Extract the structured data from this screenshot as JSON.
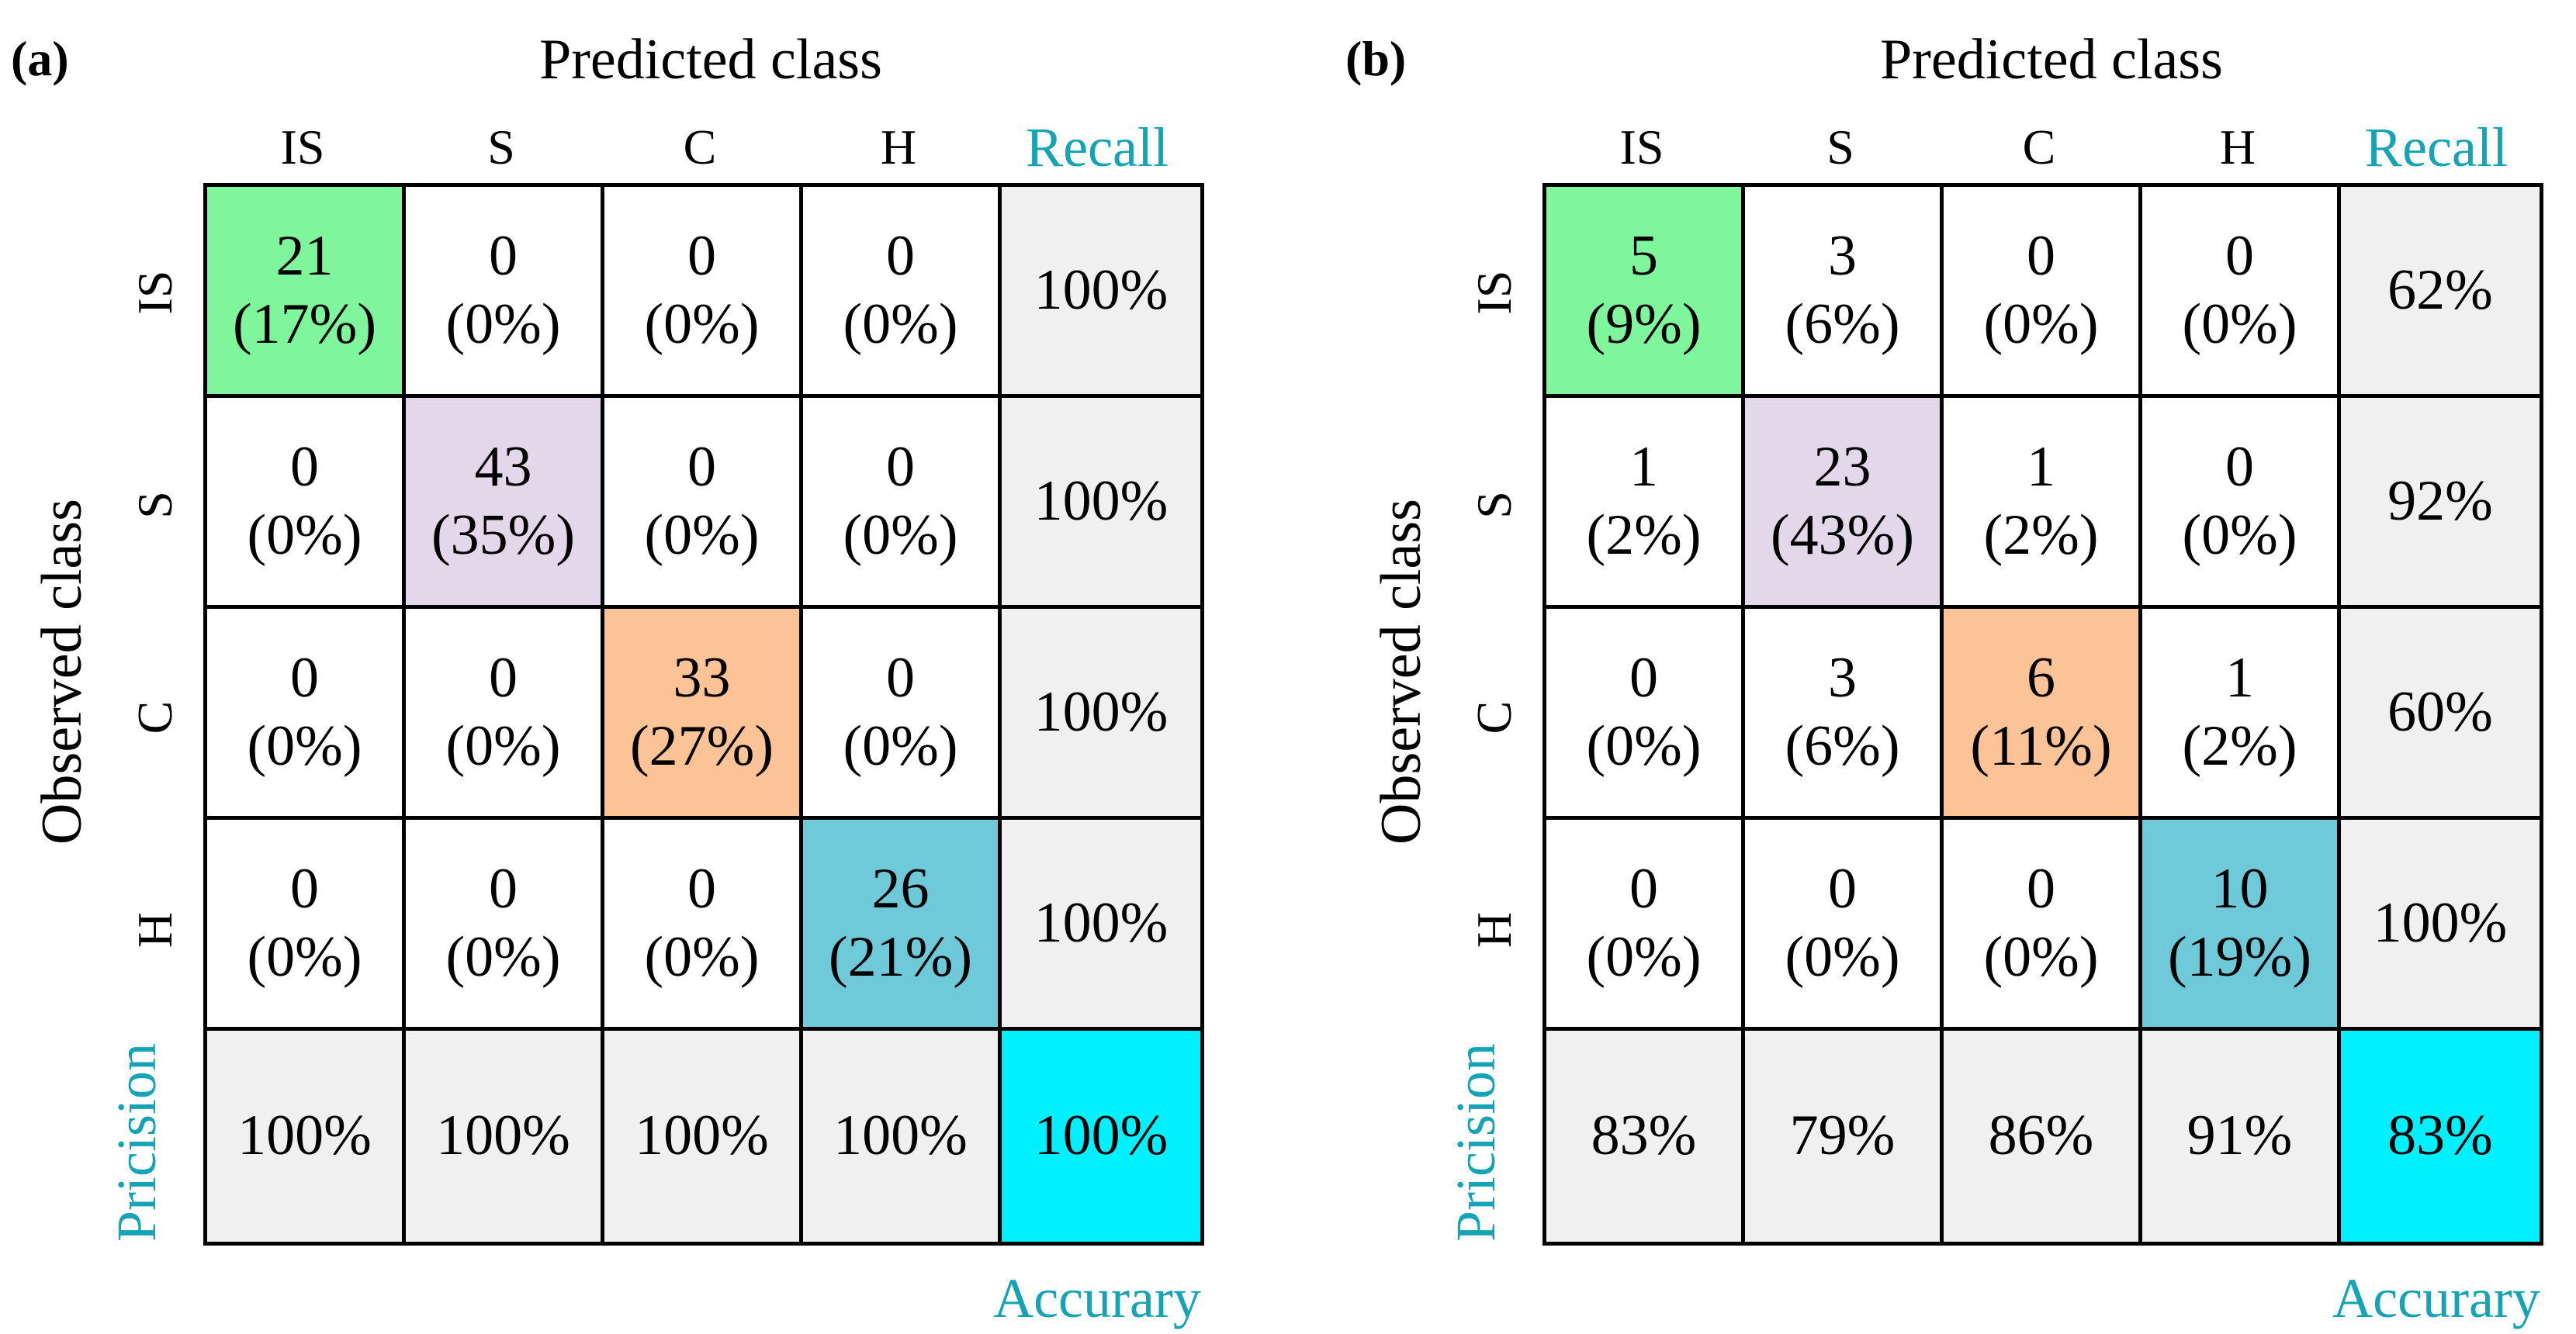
{
  "chart_data": [
    {
      "type": "table",
      "panel_label": "(a)",
      "title": "Predicted class",
      "xlabel": "Predicted class",
      "ylabel": "Observed class",
      "columns": [
        "IS",
        "S",
        "C",
        "H"
      ],
      "rows": [
        "IS",
        "S",
        "C",
        "H"
      ],
      "recall_label": "Recall",
      "precision_label": "Pricision",
      "accuracy_label": "Accurary",
      "counts": [
        [
          21,
          0,
          0,
          0
        ],
        [
          0,
          43,
          0,
          0
        ],
        [
          0,
          0,
          33,
          0
        ],
        [
          0,
          0,
          0,
          26
        ]
      ],
      "percents": [
        [
          "(17%)",
          "(0%)",
          "(0%)",
          "(0%)"
        ],
        [
          "(0%)",
          "(35%)",
          "(0%)",
          "(0%)"
        ],
        [
          "(0%)",
          "(0%)",
          "(27%)",
          "(0%)"
        ],
        [
          "(0%)",
          "(0%)",
          "(0%)",
          "(21%)"
        ]
      ],
      "recall": [
        "100%",
        "100%",
        "100%",
        "100%"
      ],
      "precision": [
        "100%",
        "100%",
        "100%",
        "100%"
      ],
      "accuracy": "100%"
    },
    {
      "type": "table",
      "panel_label": "(b)",
      "title": "Predicted class",
      "xlabel": "Predicted class",
      "ylabel": "Observed class",
      "columns": [
        "IS",
        "S",
        "C",
        "H"
      ],
      "rows": [
        "IS",
        "S",
        "C",
        "H"
      ],
      "recall_label": "Recall",
      "precision_label": "Pricision",
      "accuracy_label": "Accurary",
      "counts": [
        [
          5,
          3,
          0,
          0
        ],
        [
          1,
          23,
          1,
          0
        ],
        [
          0,
          3,
          6,
          1
        ],
        [
          0,
          0,
          0,
          10
        ]
      ],
      "percents": [
        [
          "(9%)",
          "(6%)",
          "(0%)",
          "(0%)"
        ],
        [
          "(2%)",
          "(43%)",
          "(2%)",
          "(0%)"
        ],
        [
          "(0%)",
          "(6%)",
          "(11%)",
          "(2%)"
        ],
        [
          "(0%)",
          "(0%)",
          "(0%)",
          "(19%)"
        ]
      ],
      "recall": [
        "62%",
        "92%",
        "60%",
        "100%"
      ],
      "precision": [
        "83%",
        "79%",
        "86%",
        "91%"
      ],
      "accuracy": "83%"
    }
  ],
  "colors": {
    "diag": [
      "#7ff59c",
      "#e2d8ea",
      "#fcc396",
      "#6ec9d9"
    ],
    "accuracy_bg": "#00f0ff",
    "summary_bg": "#f0f0f0",
    "label_teal": "#16a3b5"
  }
}
